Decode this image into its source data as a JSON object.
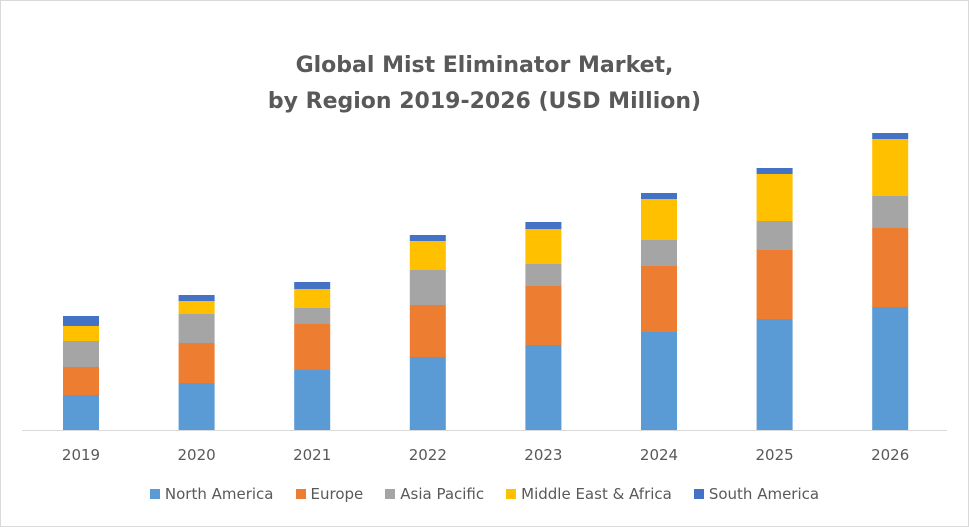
{
  "chart_data": {
    "type": "bar",
    "stacked": true,
    "title": "Global Mist Eliminator Market,",
    "subtitle": "by Region 2019-2026 (USD Million)",
    "categories": [
      "2019",
      "2020",
      "2021",
      "2022",
      "2023",
      "2024",
      "2025",
      "2026"
    ],
    "series": [
      {
        "name": "North America",
        "color": "#5b9bd5",
        "values": [
          35,
          47,
          60,
          73,
          85,
          98,
          111,
          123
        ]
      },
      {
        "name": "Europe",
        "color": "#ed7d31",
        "values": [
          28,
          40,
          46,
          52,
          59,
          66,
          69,
          79
        ]
      },
      {
        "name": "Asia Pacific",
        "color": "#a5a5a5",
        "values": [
          26,
          29,
          16,
          35,
          22,
          26,
          29,
          32
        ]
      },
      {
        "name": "Middle East & Africa",
        "color": "#ffc000",
        "values": [
          15,
          13,
          19,
          29,
          35,
          41,
          47,
          57
        ]
      },
      {
        "name": "South America",
        "color": "#4472c4",
        "values": [
          10,
          6,
          7,
          6,
          7,
          6,
          6,
          6
        ]
      }
    ],
    "y_axis_visible": false,
    "grid": false,
    "legend": "bottom"
  }
}
